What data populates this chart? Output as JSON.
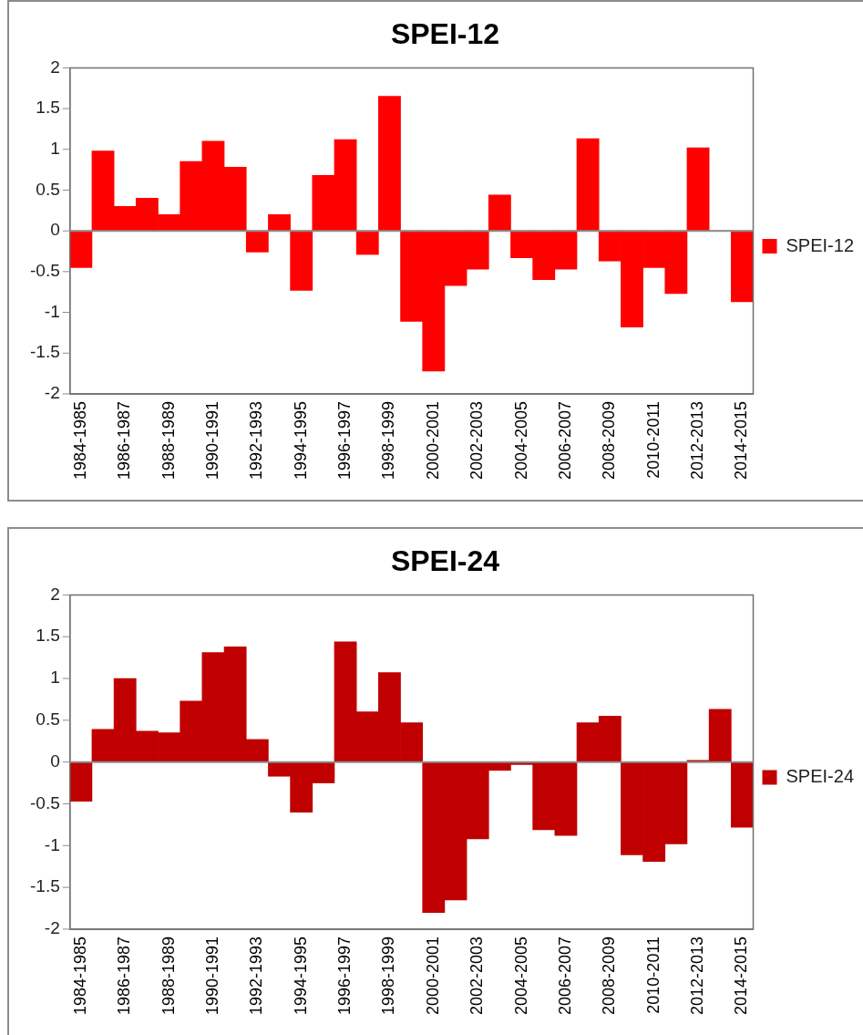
{
  "chart_data": [
    {
      "type": "bar",
      "title": "SPEI-12",
      "categories": [
        "1984-1985",
        null,
        "1986-1987",
        null,
        "1988-1989",
        null,
        "1990-1991",
        null,
        "1992-1993",
        null,
        "1994-1995",
        null,
        "1996-1997",
        null,
        "1998-1999",
        null,
        "2000-2001",
        null,
        "2002-2003",
        null,
        "2004-2005",
        null,
        "2006-2007",
        null,
        "2008-2009",
        null,
        "2010-2011",
        null,
        "2012-2013",
        null,
        "2014-2015"
      ],
      "series": [
        {
          "name": "SPEI-12",
          "color": "#ff0000",
          "values": [
            -0.45,
            0.98,
            0.3,
            0.4,
            0.2,
            0.85,
            1.1,
            0.78,
            -0.26,
            0.2,
            -0.73,
            0.68,
            1.12,
            -0.29,
            1.65,
            -1.11,
            -1.72,
            -0.67,
            -0.47,
            0.44,
            -0.33,
            -0.6,
            -0.47,
            1.13,
            -0.37,
            -1.18,
            -0.45,
            -0.77,
            1.02,
            0,
            -0.87
          ]
        }
      ],
      "ylim": [
        -2,
        2
      ],
      "yticks": [
        -2,
        -1.5,
        -1,
        -0.5,
        0,
        0.5,
        1,
        1.5,
        2
      ],
      "legend": "right"
    },
    {
      "type": "bar",
      "title": "SPEI-24",
      "categories": [
        "1984-1985",
        null,
        "1986-1987",
        null,
        "1988-1989",
        null,
        "1990-1991",
        null,
        "1992-1993",
        null,
        "1994-1995",
        null,
        "1996-1997",
        null,
        "1998-1999",
        null,
        "2000-2001",
        null,
        "2002-2003",
        null,
        "2004-2005",
        null,
        "2006-2007",
        null,
        "2008-2009",
        null,
        "2010-2011",
        null,
        "2012-2013",
        null,
        "2014-2015"
      ],
      "series": [
        {
          "name": "SPEI-24",
          "color": "#c00000",
          "values": [
            -0.47,
            0.39,
            1.0,
            0.37,
            0.35,
            0.73,
            1.31,
            1.38,
            0.27,
            -0.17,
            -0.6,
            -0.25,
            1.44,
            0.6,
            1.07,
            0.47,
            -1.8,
            -1.65,
            -0.92,
            -0.1,
            -0.03,
            -0.81,
            -0.88,
            0.47,
            0.55,
            -1.11,
            -1.19,
            -0.98,
            0.02,
            0.63,
            -0.78
          ]
        }
      ],
      "ylim": [
        -2,
        2
      ],
      "yticks": [
        -2,
        -1.5,
        -1,
        -0.5,
        0,
        0.5,
        1,
        1.5,
        2
      ],
      "legend": "right"
    }
  ]
}
